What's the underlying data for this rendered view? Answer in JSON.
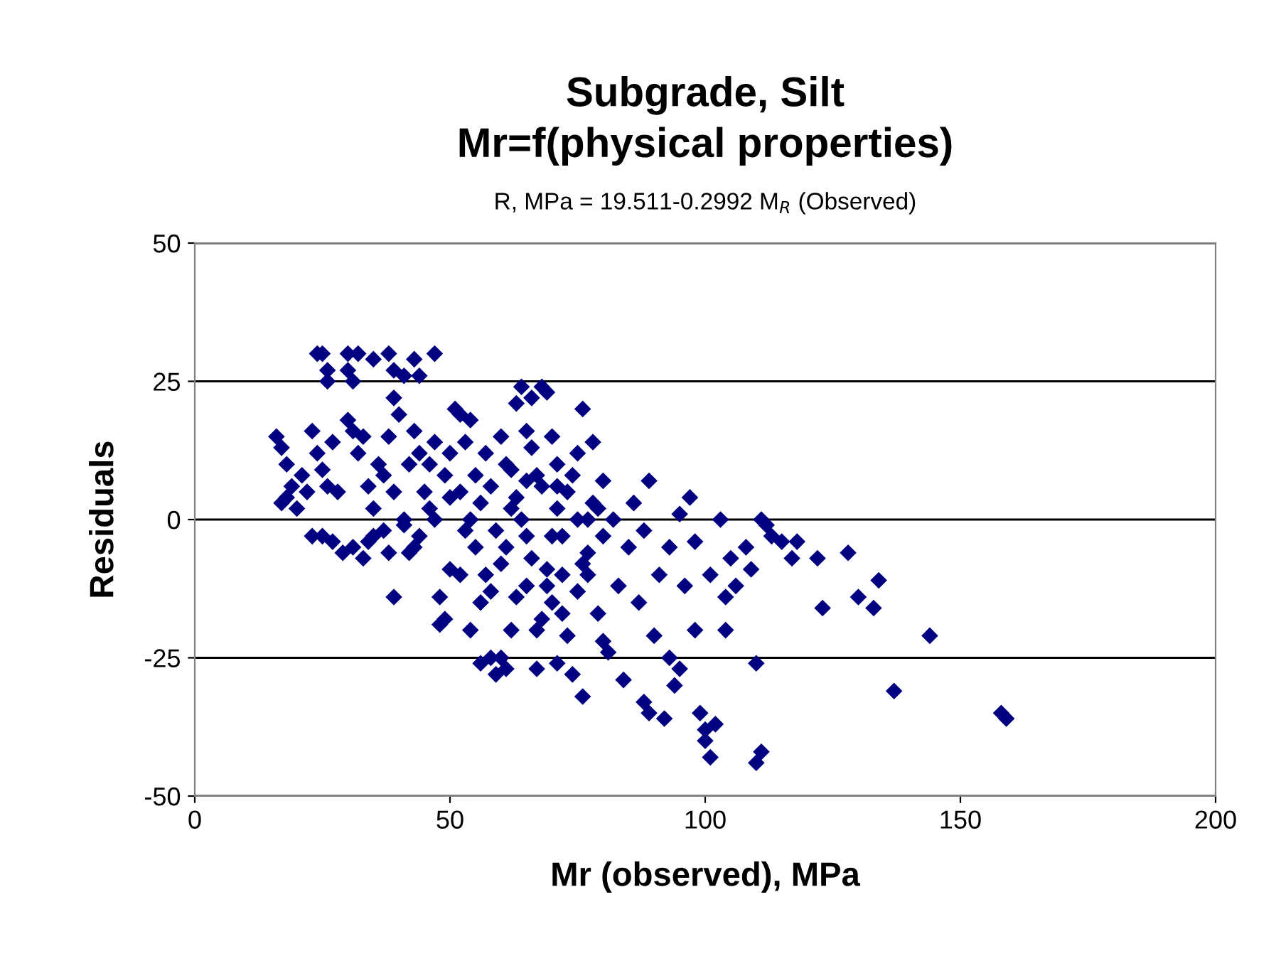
{
  "chart_data": {
    "type": "scatter",
    "title": "Subgrade, Silt\nMr=f(physical properties)",
    "subtitle": "R, MPa = 19.511-0.2992 M$_{R}$ (Observed)",
    "xlabel": "Mr (observed), MPa",
    "ylabel": "Residuals",
    "xlim": [
      0,
      200
    ],
    "ylim": [
      -50,
      50
    ],
    "xticks": [
      0,
      50,
      100,
      150,
      200
    ],
    "yticks": [
      -50,
      -25,
      0,
      25,
      50
    ],
    "grid": "y",
    "marker": "diamond",
    "series": [
      {
        "color": "#000080",
        "x": [
          16,
          17,
          18,
          19,
          17,
          18,
          20,
          21,
          22,
          23,
          24,
          25,
          26,
          27,
          28,
          30,
          31,
          32,
          33,
          34,
          35,
          36,
          37,
          38,
          39,
          40,
          41,
          42,
          43,
          23,
          25,
          27,
          29,
          31,
          33,
          34,
          35,
          37,
          38,
          39,
          41,
          43,
          44,
          42,
          45,
          44,
          46,
          24,
          25,
          26,
          26,
          30,
          32,
          30,
          31,
          35,
          38,
          39,
          43,
          47,
          39,
          41,
          44,
          47,
          48,
          48,
          49,
          50,
          50,
          51,
          52,
          53,
          54,
          55,
          55,
          56,
          57,
          58,
          59,
          60,
          60,
          61,
          62,
          62,
          63,
          63,
          64,
          65,
          65,
          66,
          66,
          67,
          67,
          68,
          68,
          69,
          70,
          70,
          71,
          71,
          72,
          72,
          73,
          74,
          75,
          75,
          76,
          76,
          77,
          78,
          78,
          79,
          80,
          80,
          81,
          52,
          54,
          56,
          58,
          59,
          61,
          63,
          64,
          66,
          68,
          69,
          71,
          72,
          74,
          76,
          77,
          79,
          80,
          57,
          53,
          50,
          49,
          56,
          60,
          62,
          65,
          67,
          70,
          73,
          75,
          52,
          54,
          47,
          46,
          58,
          61,
          69,
          77,
          71,
          65,
          82,
          83,
          84,
          85,
          86,
          87,
          88,
          88,
          89,
          89,
          90,
          91,
          92,
          93,
          93,
          94,
          95,
          95,
          96,
          97,
          98,
          98,
          99,
          100,
          100,
          101,
          101,
          102,
          103,
          104,
          104,
          105,
          106,
          108,
          109,
          110,
          110,
          111,
          111,
          112,
          113,
          115,
          117,
          118,
          122,
          123,
          128,
          130,
          133,
          134,
          137,
          144,
          158,
          159
        ],
        "values": [
          15,
          13,
          10,
          6,
          3,
          4,
          2,
          8,
          5,
          16,
          12,
          9,
          6,
          14,
          5,
          18,
          16,
          12,
          15,
          6,
          2,
          10,
          8,
          15,
          5,
          19,
          0,
          10,
          16,
          -3,
          -3,
          -4,
          -6,
          -5,
          -7,
          -4,
          -3,
          -2,
          -6,
          -14,
          -1,
          -5,
          -3,
          -6,
          5,
          12,
          10,
          30,
          30,
          27,
          25,
          30,
          30,
          27,
          25,
          29,
          30,
          27,
          29,
          30,
          22,
          26,
          26,
          14,
          -14,
          -19,
          -18,
          -9,
          12,
          20,
          19,
          14,
          18,
          8,
          -5,
          -26,
          -10,
          -13,
          -28,
          -25,
          15,
          10,
          -20,
          2,
          -14,
          21,
          24,
          -3,
          -12,
          13,
          22,
          -27,
          8,
          -18,
          24,
          23,
          -3,
          15,
          2,
          -26,
          -17,
          -10,
          5,
          -28,
          0,
          -13,
          20,
          -32,
          -6,
          3,
          14,
          -17,
          -22,
          7,
          -24,
          5,
          0,
          3,
          6,
          -2,
          -5,
          4,
          0,
          -7,
          6,
          -9,
          10,
          -3,
          8,
          -8,
          0,
          2,
          -3,
          12,
          -2,
          4,
          8,
          -15,
          -8,
          9,
          16,
          -20,
          -15,
          -21,
          12,
          -10,
          -20,
          0,
          2,
          -25,
          -27,
          -12,
          -10,
          6,
          7,
          0,
          -12,
          -29,
          -5,
          3,
          -15,
          -33,
          -2,
          -35,
          7,
          -21,
          -10,
          -36,
          -5,
          -25,
          -30,
          -27,
          1,
          -12,
          4,
          -4,
          -20,
          -35,
          -38,
          -40,
          -43,
          -10,
          -37,
          0,
          -14,
          -20,
          -7,
          -12,
          -5,
          -9,
          -26,
          -44,
          -42,
          0,
          -1,
          -3,
          -4,
          -7,
          -4,
          -7,
          -16,
          -6,
          -14,
          -16,
          -11,
          -31,
          -21,
          -35,
          -36
        ]
      }
    ]
  }
}
